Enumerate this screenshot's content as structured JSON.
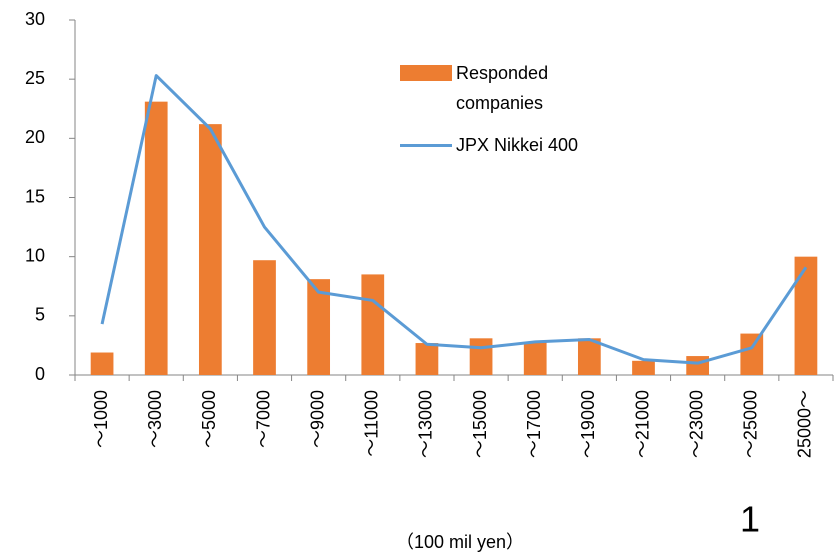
{
  "chart_data": {
    "type": "bar_line",
    "categories": [
      "～1000",
      "～3000",
      "～5000",
      "～7000",
      "～9000",
      "～11000",
      "～13000",
      "～15000",
      "～17000",
      "～19000",
      "～21000",
      "～23000",
      "～25000",
      "25000～"
    ],
    "series": [
      {
        "name": "Responded companies",
        "type": "bar",
        "color": "#ed7d31",
        "values": [
          1.9,
          23.1,
          21.2,
          9.7,
          8.1,
          8.5,
          2.7,
          3.1,
          2.8,
          3.1,
          1.2,
          1.6,
          3.5,
          10.0
        ]
      },
      {
        "name": "JPX Nikkei 400",
        "type": "line",
        "color": "#5b9bd5",
        "values": [
          4.3,
          25.3,
          20.8,
          12.5,
          7.0,
          6.3,
          2.6,
          2.3,
          2.8,
          3.0,
          1.3,
          1.0,
          2.3,
          9.1
        ]
      }
    ],
    "ylim": [
      0,
      30
    ],
    "yticks": [
      0,
      5,
      10,
      15,
      20,
      25,
      30
    ],
    "grid": false,
    "x_label": "（100 mil yen）",
    "annotation": "1"
  }
}
